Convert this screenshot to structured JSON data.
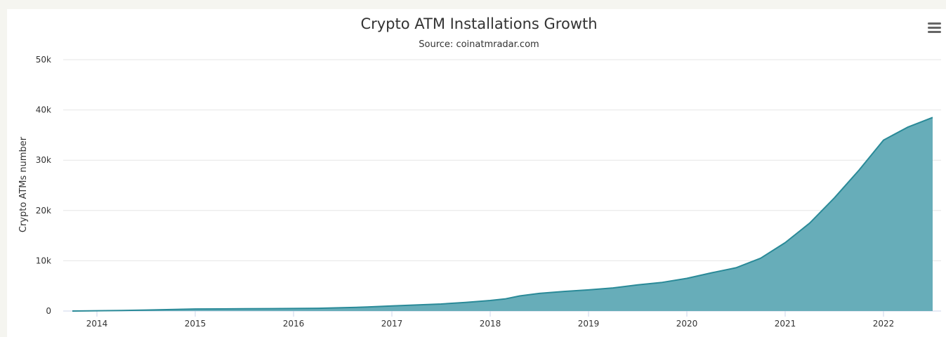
{
  "chart_data": {
    "type": "area",
    "title": "Crypto ATM Installations Growth",
    "subtitle": "Source: coinatmradar.com",
    "xlabel": "",
    "ylabel": "Crypto ATMs number",
    "x_ticks": [
      "2014",
      "2015",
      "2016",
      "2017",
      "2018",
      "2019",
      "2020",
      "2021",
      "2022"
    ],
    "y_ticks": [
      "0",
      "10k",
      "20k",
      "30k",
      "40k",
      "50k"
    ],
    "ylim": [
      0,
      50000
    ],
    "xlim": [
      2013.75,
      2022.5
    ],
    "grid": true,
    "legend": "none",
    "colors": {
      "fill": "#67adb9",
      "line": "#2a8a98",
      "grid": "#e6e6e6"
    },
    "series": [
      {
        "points": [
          [
            2013.75,
            0
          ],
          [
            2014.0,
            50
          ],
          [
            2014.25,
            100
          ],
          [
            2014.5,
            200
          ],
          [
            2014.75,
            300
          ],
          [
            2015.0,
            400
          ],
          [
            2015.25,
            420
          ],
          [
            2015.5,
            450
          ],
          [
            2015.75,
            470
          ],
          [
            2016.0,
            500
          ],
          [
            2016.25,
            550
          ],
          [
            2016.5,
            650
          ],
          [
            2016.75,
            800
          ],
          [
            2017.0,
            1000
          ],
          [
            2017.25,
            1200
          ],
          [
            2017.5,
            1400
          ],
          [
            2017.75,
            1700
          ],
          [
            2018.0,
            2100
          ],
          [
            2018.15,
            2400
          ],
          [
            2018.3,
            3000
          ],
          [
            2018.5,
            3500
          ],
          [
            2018.75,
            3900
          ],
          [
            2019.0,
            4200
          ],
          [
            2019.25,
            4600
          ],
          [
            2019.5,
            5200
          ],
          [
            2019.75,
            5700
          ],
          [
            2020.0,
            6500
          ],
          [
            2020.25,
            7600
          ],
          [
            2020.5,
            8600
          ],
          [
            2020.75,
            10500
          ],
          [
            2021.0,
            13600
          ],
          [
            2021.25,
            17500
          ],
          [
            2021.5,
            22500
          ],
          [
            2021.75,
            28000
          ],
          [
            2022.0,
            34000
          ],
          [
            2022.25,
            36600
          ],
          [
            2022.5,
            38500
          ]
        ]
      }
    ]
  },
  "ui": {
    "menu_icon": "hamburger-menu-icon"
  }
}
